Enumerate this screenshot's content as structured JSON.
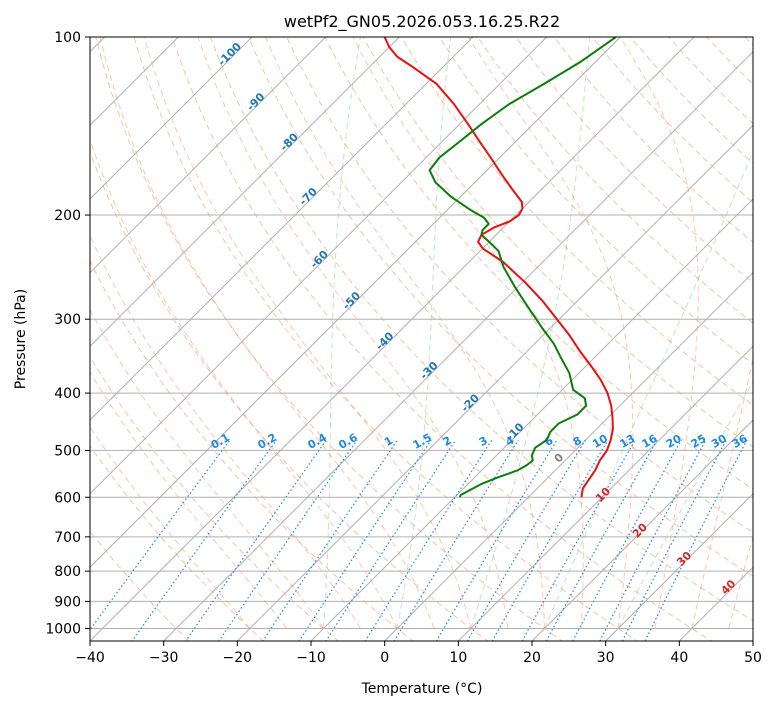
{
  "chart_data": {
    "type": "line",
    "title": "wetPf2_GN05.2026.053.16.25.R22",
    "xlabel": "Temperature (°C)",
    "ylabel": "Pressure (hPa)",
    "xlim": [
      -40,
      50
    ],
    "ylim": [
      1050,
      100
    ],
    "y_scale": "log",
    "x_ticks": [
      -40,
      -30,
      -20,
      -10,
      0,
      10,
      20,
      30,
      40,
      50
    ],
    "x_tick_labels": [
      "−40",
      "−30",
      "−20",
      "−10",
      "0",
      "10",
      "20",
      "30",
      "40",
      "50"
    ],
    "y_ticks": [
      1000,
      900,
      800,
      700,
      600,
      500,
      400,
      300,
      200,
      100
    ],
    "y_tick_labels": [
      "1000",
      "900",
      "800",
      "700",
      "600",
      "500",
      "400",
      "300",
      "200",
      "100"
    ],
    "grid": true,
    "series": [
      {
        "role": "temperature",
        "color": "#e8110f",
        "points": [
          {
            "p": 600,
            "t": 7.2
          },
          {
            "p": 580,
            "t": 6.2
          },
          {
            "p": 560,
            "t": 5.8
          },
          {
            "p": 540,
            "t": 5.4
          },
          {
            "p": 520,
            "t": 4.7
          },
          {
            "p": 500,
            "t": 4.3
          },
          {
            "p": 480,
            "t": 3.4
          },
          {
            "p": 460,
            "t": 2.2
          },
          {
            "p": 440,
            "t": 0.6
          },
          {
            "p": 420,
            "t": -1.2
          },
          {
            "p": 400,
            "t": -3.4
          },
          {
            "p": 380,
            "t": -6.1
          },
          {
            "p": 360,
            "t": -9.3
          },
          {
            "p": 340,
            "t": -12.8
          },
          {
            "p": 320,
            "t": -16.3
          },
          {
            "p": 300,
            "t": -20.3
          },
          {
            "p": 280,
            "t": -24.6
          },
          {
            "p": 260,
            "t": -29.6
          },
          {
            "p": 240,
            "t": -35.4
          },
          {
            "p": 228,
            "t": -39.9
          },
          {
            "p": 222,
            "t": -41.5
          },
          {
            "p": 216,
            "t": -42.0
          },
          {
            "p": 210,
            "t": -41.3
          },
          {
            "p": 205,
            "t": -40.0
          },
          {
            "p": 200,
            "t": -39.6
          },
          {
            "p": 195,
            "t": -40.0
          },
          {
            "p": 190,
            "t": -41.0
          },
          {
            "p": 180,
            "t": -44.3
          },
          {
            "p": 170,
            "t": -47.7
          },
          {
            "p": 160,
            "t": -51.2
          },
          {
            "p": 150,
            "t": -55.0
          },
          {
            "p": 140,
            "t": -59.0
          },
          {
            "p": 130,
            "t": -63.4
          },
          {
            "p": 120,
            "t": -68.6
          },
          {
            "p": 112,
            "t": -74.4
          },
          {
            "p": 108,
            "t": -77.6
          },
          {
            "p": 104,
            "t": -80.0
          },
          {
            "p": 100,
            "t": -82.0
          }
        ]
      },
      {
        "role": "dewpoint",
        "color": "#0a7d0a",
        "points": [
          {
            "p": 600,
            "t": -9.3
          },
          {
            "p": 595,
            "t": -9.5
          },
          {
            "p": 585,
            "t": -9.0
          },
          {
            "p": 570,
            "t": -8.2
          },
          {
            "p": 555,
            "t": -6.8
          },
          {
            "p": 540,
            "t": -5.1
          },
          {
            "p": 530,
            "t": -4.6
          },
          {
            "p": 520,
            "t": -4.4
          },
          {
            "p": 510,
            "t": -5.2
          },
          {
            "p": 495,
            "t": -5.8
          },
          {
            "p": 480,
            "t": -5.3
          },
          {
            "p": 465,
            "t": -5.9
          },
          {
            "p": 450,
            "t": -5.9
          },
          {
            "p": 435,
            "t": -4.6
          },
          {
            "p": 420,
            "t": -4.6
          },
          {
            "p": 408,
            "t": -5.8
          },
          {
            "p": 395,
            "t": -8.5
          },
          {
            "p": 370,
            "t": -11.3
          },
          {
            "p": 350,
            "t": -14.3
          },
          {
            "p": 330,
            "t": -17.4
          },
          {
            "p": 310,
            "t": -21.2
          },
          {
            "p": 285,
            "t": -26.1
          },
          {
            "p": 265,
            "t": -30.3
          },
          {
            "p": 245,
            "t": -34.6
          },
          {
            "p": 230,
            "t": -37.5
          },
          {
            "p": 222,
            "t": -40.0
          },
          {
            "p": 216,
            "t": -42.0
          },
          {
            "p": 212,
            "t": -42.5
          },
          {
            "p": 207,
            "t": -42.5
          },
          {
            "p": 202,
            "t": -44.0
          },
          {
            "p": 196,
            "t": -46.9
          },
          {
            "p": 186,
            "t": -51.4
          },
          {
            "p": 176,
            "t": -55.4
          },
          {
            "p": 168,
            "t": -57.8
          },
          {
            "p": 160,
            "t": -58.2
          },
          {
            "p": 150,
            "t": -57.6
          },
          {
            "p": 140,
            "t": -57.0
          },
          {
            "p": 130,
            "t": -56.0
          },
          {
            "p": 120,
            "t": -54.0
          },
          {
            "p": 110,
            "t": -52.0
          },
          {
            "p": 100,
            "t": -50.6
          }
        ]
      }
    ],
    "isotherm_labels": [
      "-100",
      "-90",
      "-80",
      "-70",
      "-60",
      "-50",
      "-40",
      "-30",
      "-20",
      "-10"
    ],
    "isotherm_label_values": [
      -100,
      -90,
      -80,
      -70,
      -60,
      -50,
      -40,
      -30,
      -20,
      -10
    ],
    "mixing_ratio_labels": [
      "0.1",
      "0.2",
      "0.4",
      "0.6",
      "1",
      "1.5",
      "2",
      "3",
      "4",
      "6",
      "8",
      "10",
      "13",
      "16",
      "20",
      "25",
      "30",
      "36"
    ],
    "mixing_ratio_values": [
      0.1,
      0.2,
      0.4,
      0.6,
      1,
      1.5,
      2,
      3,
      4,
      6,
      8,
      10,
      13,
      16,
      20,
      25,
      30,
      36
    ],
    "moist_adiabat_labels": [
      "0",
      "10",
      "20",
      "30",
      "40"
    ],
    "moist_adiabat_values": [
      0,
      10,
      20,
      30,
      40
    ],
    "colors": {
      "temperature": "#e8110f",
      "dewpoint": "#0a7d0a",
      "isotherm_label": "#1f77b4",
      "mixing_ratio": "#1e88e5",
      "moist_adiabat_label": "#d62728",
      "moist_adiabat_zero_label": "#7f7f7f",
      "dry_adiabat": "#d2691e",
      "moist_adiabat": "#2ca02c",
      "grid": "#b0b0b0"
    }
  }
}
